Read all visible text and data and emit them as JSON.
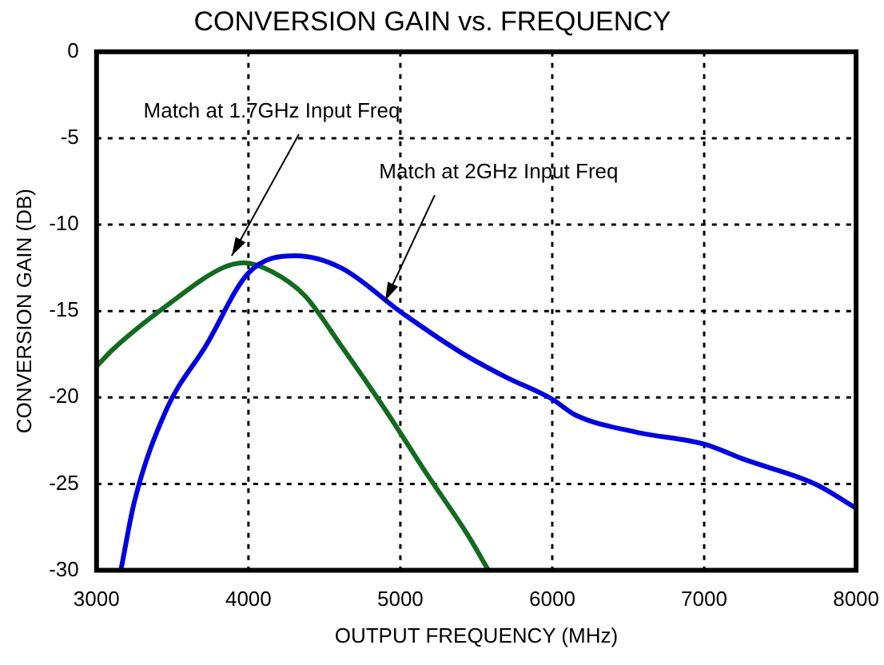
{
  "chart_data": {
    "type": "line",
    "title": "CONVERSION GAIN vs. FREQUENCY",
    "xlabel": "OUTPUT FREQUENCY (MHz)",
    "ylabel": "CONVERSION GAIN (DB)",
    "xlim": [
      3000,
      8000
    ],
    "xticks": [
      3000,
      4000,
      5000,
      6000,
      7000,
      8000
    ],
    "ylim": [
      -30,
      0
    ],
    "yticks": [
      -30,
      -25,
      -20,
      -15,
      -10,
      -5,
      0
    ],
    "grid": true,
    "line_style": "solid",
    "marker": "none",
    "series": [
      {
        "color": "#0000e0",
        "x": [
          3160,
          3250,
          3460,
          3720,
          4000,
          4310,
          4610,
          5010,
          5400,
          5690,
          6000,
          6150,
          6550,
          7000,
          7270,
          7730,
          8000
        ],
        "values": [
          -30,
          -26,
          -20.7,
          -17,
          -12.8,
          -11.8,
          -12.5,
          -15.1,
          -17.4,
          -18.8,
          -20.1,
          -21,
          -22,
          -22.7,
          -23.6,
          -25,
          -26.4
        ]
      },
      {
        "color": "#136b20",
        "x": [
          3000,
          3110,
          3460,
          3830,
          3970,
          4150,
          4370,
          4610,
          4900,
          5180,
          5440,
          5580
        ],
        "values": [
          -18.2,
          -17.2,
          -14.7,
          -12.5,
          -12.2,
          -12.7,
          -14.1,
          -17,
          -20.7,
          -24.5,
          -27.9,
          -30
        ]
      }
    ],
    "annotations": [
      {
        "text": "Match at 1.7GHz Input Freq",
        "x": 3890,
        "y": -11.8
      },
      {
        "text": "Match at 2GHz Input Freq",
        "x": 4900,
        "y": -14.4
      }
    ]
  }
}
